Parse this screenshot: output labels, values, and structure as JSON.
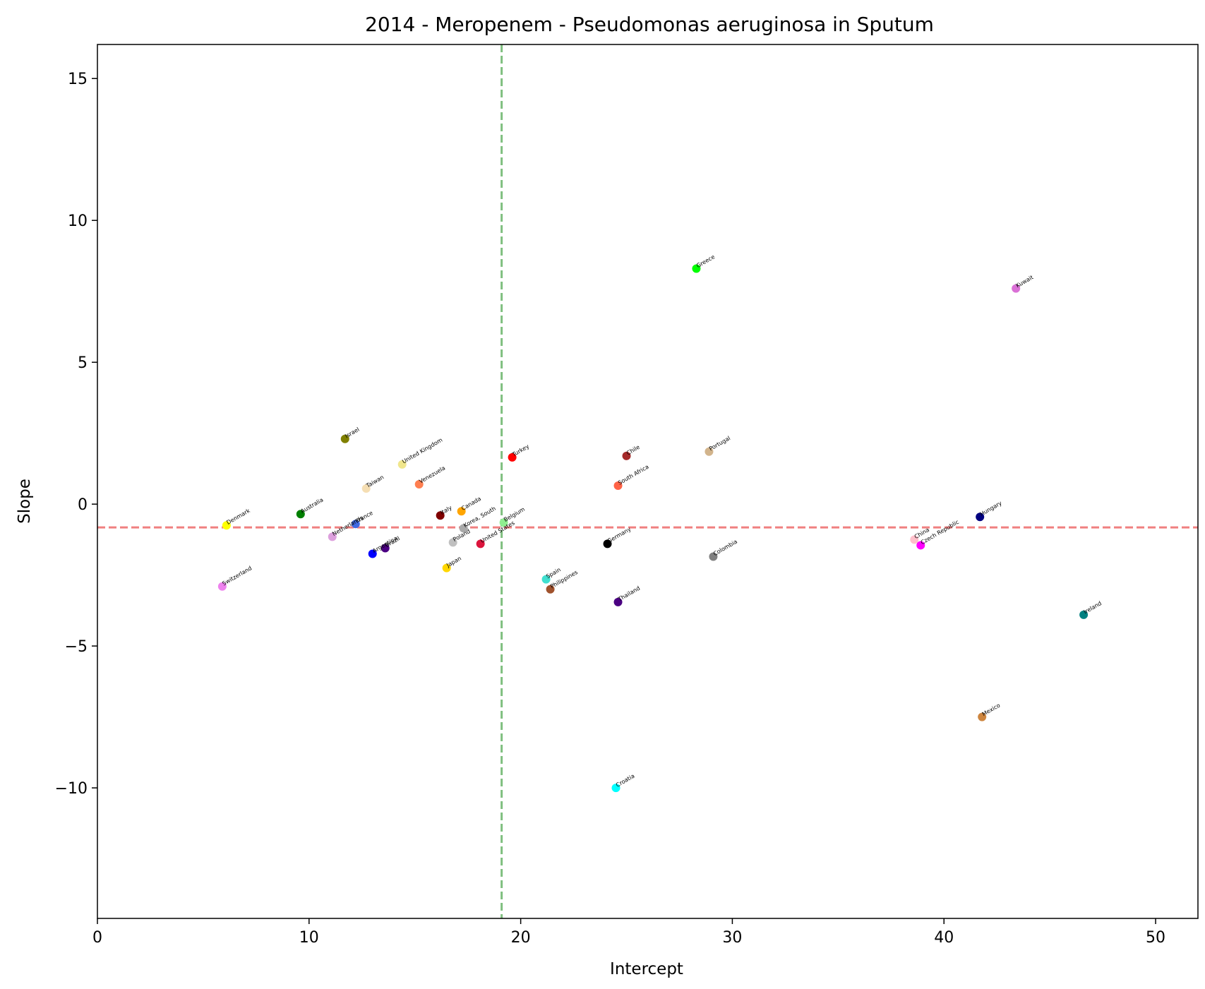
{
  "chart_data": {
    "type": "scatter",
    "title": "2014 - Meropenem - Pseudomonas aeruginosa in Sputum",
    "xlabel": "Intercept",
    "ylabel": "Slope",
    "xlim": [
      0,
      52
    ],
    "ylim": [
      -14.6,
      16.2
    ],
    "xticks": [
      0,
      10,
      20,
      30,
      40,
      50
    ],
    "yticks": [
      15,
      10,
      5,
      0,
      -5,
      -10
    ],
    "ytick_labels": [
      "15",
      "10",
      "5",
      "0",
      "−5",
      "−10"
    ],
    "grid": false,
    "reference_lines": [
      {
        "orientation": "vertical",
        "value": 19.1,
        "color": "#7fbf7f",
        "style": "dashed"
      },
      {
        "orientation": "horizontal",
        "value": -0.82,
        "color": "#f08080",
        "style": "dashed"
      }
    ],
    "points": [
      {
        "label": "Greece",
        "x": 28.3,
        "y": 8.3,
        "color": "#00ff00"
      },
      {
        "label": "Kuwait",
        "x": 43.4,
        "y": 7.6,
        "color": "#da70d6"
      },
      {
        "label": "Israel",
        "x": 11.7,
        "y": 2.3,
        "color": "#808000"
      },
      {
        "label": "United Kingdom",
        "x": 14.4,
        "y": 1.4,
        "color": "#f0e68c"
      },
      {
        "label": "Turkey",
        "x": 19.6,
        "y": 1.65,
        "color": "#ff0000"
      },
      {
        "label": "Chile",
        "x": 25.0,
        "y": 1.7,
        "color": "#a52a2a"
      },
      {
        "label": "Portugal",
        "x": 28.9,
        "y": 1.85,
        "color": "#d2b48c"
      },
      {
        "label": "Taiwan",
        "x": 12.7,
        "y": 0.55,
        "color": "#f5deb3"
      },
      {
        "label": "Venezuela",
        "x": 15.2,
        "y": 0.7,
        "color": "#ff7f50"
      },
      {
        "label": "South Africa",
        "x": 24.6,
        "y": 0.65,
        "color": "#ff6347"
      },
      {
        "label": "Italy",
        "x": 16.2,
        "y": -0.4,
        "color": "#800000"
      },
      {
        "label": "Canada",
        "x": 17.2,
        "y": -0.25,
        "color": "#ffa500"
      },
      {
        "label": "Australia",
        "x": 9.6,
        "y": -0.35,
        "color": "#008000"
      },
      {
        "label": "Denmark",
        "x": 6.1,
        "y": -0.75,
        "color": "#ffff00"
      },
      {
        "label": "France",
        "x": 12.2,
        "y": -0.7,
        "color": "#4169e1"
      },
      {
        "label": "Korea, South",
        "x": 17.3,
        "y": -0.85,
        "color": "#a9a9a9"
      },
      {
        "label": "Belgium",
        "x": 19.2,
        "y": -0.65,
        "color": "#90ee90"
      },
      {
        "label": "Netherlands",
        "x": 11.1,
        "y": -1.15,
        "color": "#dda0dd"
      },
      {
        "label": "Poland",
        "x": 16.8,
        "y": -1.35,
        "color": "#c0c0c0"
      },
      {
        "label": "United States",
        "x": 18.1,
        "y": -1.4,
        "color": "#dc143c"
      },
      {
        "label": "Argentina",
        "x": 13.0,
        "y": -1.75,
        "color": "#0000ff"
      },
      {
        "label": "Brazil",
        "x": 13.6,
        "y": -1.55,
        "color": "#4b0082"
      },
      {
        "label": "Germany",
        "x": 24.1,
        "y": -1.4,
        "color": "#000000"
      },
      {
        "label": "Colombia",
        "x": 29.1,
        "y": -1.85,
        "color": "#808080"
      },
      {
        "label": "China",
        "x": 38.6,
        "y": -1.25,
        "color": "#ffc0cb"
      },
      {
        "label": "Czech Republic",
        "x": 38.9,
        "y": -1.45,
        "color": "#ff00ff"
      },
      {
        "label": "Hungary",
        "x": 41.7,
        "y": -0.45,
        "color": "#000080"
      },
      {
        "label": "Japan",
        "x": 16.5,
        "y": -2.25,
        "color": "#ffd700"
      },
      {
        "label": "Spain",
        "x": 21.2,
        "y": -2.65,
        "color": "#40e0d0"
      },
      {
        "label": "Philippines",
        "x": 21.4,
        "y": -3.0,
        "color": "#a0522d"
      },
      {
        "label": "Thailand",
        "x": 24.6,
        "y": -3.45,
        "color": "#4b0082"
      },
      {
        "label": "Switzerland",
        "x": 5.9,
        "y": -2.9,
        "color": "#ee82ee"
      },
      {
        "label": "Ireland",
        "x": 46.6,
        "y": -3.9,
        "color": "#008080"
      },
      {
        "label": "Mexico",
        "x": 41.8,
        "y": -7.5,
        "color": "#cd853f"
      },
      {
        "label": "Croatia",
        "x": 24.5,
        "y": -10.0,
        "color": "#00ffff"
      }
    ]
  }
}
